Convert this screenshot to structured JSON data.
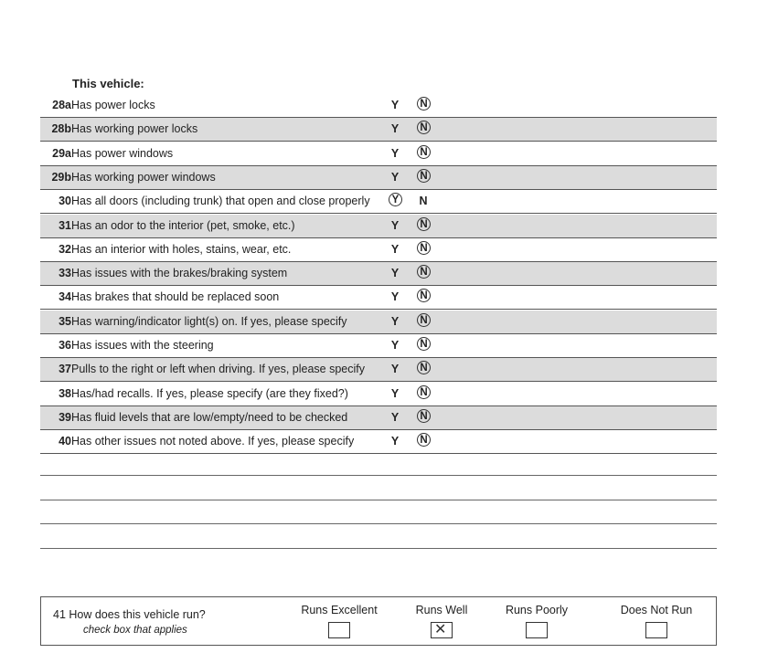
{
  "heading": "This vehicle:",
  "yes_label": "Y",
  "no_label": "N",
  "rows": [
    {
      "num": "28a",
      "text": "Has power locks",
      "answer": "N"
    },
    {
      "num": "28b",
      "text": "Has working power locks",
      "answer": "N"
    },
    {
      "num": "29a",
      "text": "Has power windows",
      "answer": "N"
    },
    {
      "num": "29b",
      "text": "Has working power windows",
      "answer": "N"
    },
    {
      "num": "30",
      "text": "Has all doors (including trunk) that open and close properly",
      "answer": "Y"
    },
    {
      "num": "31",
      "text": "Has an odor to the interior (pet, smoke, etc.)",
      "answer": "N"
    },
    {
      "num": "32",
      "text": "Has an interior with holes, stains, wear, etc.",
      "answer": "N"
    },
    {
      "num": "33",
      "text": "Has issues with the brakes/braking system",
      "answer": "N"
    },
    {
      "num": "34",
      "text": "Has brakes that should be replaced soon",
      "answer": "N"
    },
    {
      "num": "35",
      "text": "Has warning/indicator light(s) on.  If yes, please specify",
      "answer": "N"
    },
    {
      "num": "36",
      "text": "Has issues with the steering",
      "answer": "N"
    },
    {
      "num": "37",
      "text": "Pulls to the right or left when driving.  If yes, please specify",
      "answer": "N"
    },
    {
      "num": "38",
      "text": "Has/had recalls.  If yes, please specify (are they fixed?)",
      "answer": "N"
    },
    {
      "num": "39",
      "text": "Has fluid levels that are low/empty/need to be checked",
      "answer": "N"
    },
    {
      "num": "40",
      "text": "Has other issues not noted above.  If yes, please specify",
      "answer": "N"
    }
  ],
  "q41": {
    "question": "41 How does this vehicle run?",
    "hint": "check box that applies",
    "options": [
      {
        "label": "Runs Excellent",
        "checked": false
      },
      {
        "label": "Runs Well",
        "checked": true
      },
      {
        "label": "Runs Poorly",
        "checked": false
      },
      {
        "label": "Does Not Run",
        "checked": false
      }
    ]
  }
}
